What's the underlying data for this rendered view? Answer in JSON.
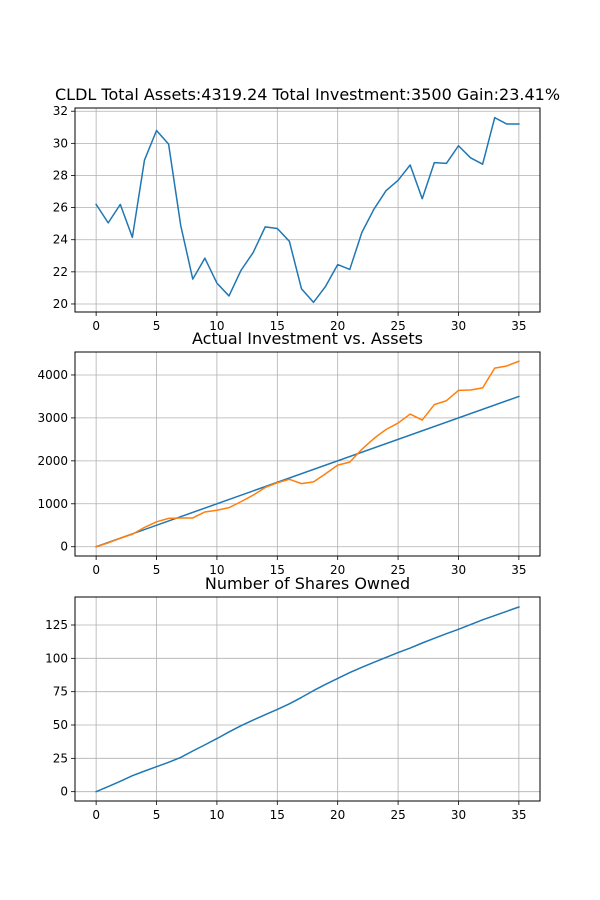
{
  "chart_data": [
    {
      "type": "line",
      "title": "CLDL Total Assets:4319.24  Total Investment:3500  Gain:23.41%",
      "xlabel": "",
      "ylabel": "",
      "grid": true,
      "xlim": [
        -1.75,
        36.75
      ],
      "ylim": [
        19.5,
        32.2
      ],
      "x_ticks": [
        0,
        5,
        10,
        15,
        20,
        25,
        30,
        35
      ],
      "y_ticks": [
        20,
        22,
        24,
        26,
        28,
        30,
        32
      ],
      "series": [
        {
          "color": "#1f77b4",
          "x": [
            0,
            1,
            2,
            3,
            4,
            5,
            6,
            7,
            8,
            9,
            10,
            11,
            12,
            13,
            14,
            15,
            16,
            17,
            18,
            19,
            20,
            21,
            22,
            23,
            24,
            25,
            26,
            27,
            28,
            29,
            30,
            31,
            32,
            33,
            34,
            35
          ],
          "values": [
            26.2,
            25.05,
            26.2,
            24.15,
            28.95,
            30.8,
            29.95,
            24.9,
            21.55,
            22.85,
            21.3,
            20.5,
            22.1,
            23.2,
            24.8,
            24.7,
            23.9,
            20.95,
            20.1,
            21.1,
            22.45,
            22.15,
            24.45,
            25.9,
            27.05,
            27.7,
            28.65,
            26.55,
            28.8,
            28.75,
            29.85,
            29.1,
            28.7,
            31.6,
            31.2,
            31.2
          ]
        }
      ]
    },
    {
      "type": "line",
      "title": "Actual Investment vs. Assets",
      "xlabel": "",
      "ylabel": "",
      "grid": true,
      "xlim": [
        -1.75,
        36.75
      ],
      "ylim": [
        -216,
        4535
      ],
      "x_ticks": [
        0,
        5,
        10,
        15,
        20,
        25,
        30,
        35
      ],
      "y_ticks": [
        0,
        1000,
        2000,
        3000,
        4000
      ],
      "series": [
        {
          "color": "#1f77b4",
          "x": [
            0,
            35
          ],
          "values": [
            0,
            3500
          ]
        },
        {
          "color": "#ff7f0e",
          "x": [
            0,
            1,
            2,
            3,
            4,
            5,
            6,
            7,
            8,
            9,
            10,
            11,
            12,
            13,
            14,
            15,
            16,
            17,
            18,
            19,
            20,
            21,
            22,
            23,
            24,
            25,
            26,
            27,
            28,
            29,
            30,
            31,
            32,
            33,
            34,
            35
          ],
          "values": [
            0,
            90,
            200,
            290,
            450,
            580,
            660,
            670,
            670,
            810,
            850,
            910,
            1050,
            1200,
            1380,
            1490,
            1570,
            1470,
            1510,
            1700,
            1900,
            1970,
            2270,
            2520,
            2730,
            2880,
            3090,
            2950,
            3310,
            3400,
            3640,
            3650,
            3700,
            4160,
            4210,
            4319
          ]
        }
      ]
    },
    {
      "type": "line",
      "title": "Number of Shares Owned",
      "xlabel": "",
      "ylabel": "",
      "grid": true,
      "xlim": [
        -1.75,
        36.75
      ],
      "ylim": [
        -7,
        146
      ],
      "x_ticks": [
        0,
        5,
        10,
        15,
        20,
        25,
        30,
        35
      ],
      "y_ticks": [
        0,
        25,
        50,
        75,
        100,
        125
      ],
      "series": [
        {
          "color": "#1f77b4",
          "x": [
            0,
            1,
            2,
            3,
            4,
            5,
            6,
            7,
            8,
            9,
            10,
            11,
            12,
            13,
            14,
            15,
            16,
            17,
            18,
            19,
            20,
            21,
            22,
            23,
            24,
            25,
            26,
            27,
            28,
            29,
            30,
            31,
            32,
            33,
            34,
            35
          ],
          "values": [
            0,
            3.8,
            7.8,
            12.0,
            15.4,
            18.7,
            22.0,
            25.7,
            30.5,
            35.1,
            39.8,
            44.8,
            49.5,
            53.7,
            57.7,
            61.7,
            65.9,
            70.7,
            75.8,
            80.5,
            84.9,
            89.3,
            93.3,
            97.0,
            100.7,
            104.3,
            107.7,
            111.5,
            115.0,
            118.5,
            121.8,
            125.3,
            128.9,
            132.1,
            135.3,
            138.5
          ]
        }
      ]
    }
  ]
}
